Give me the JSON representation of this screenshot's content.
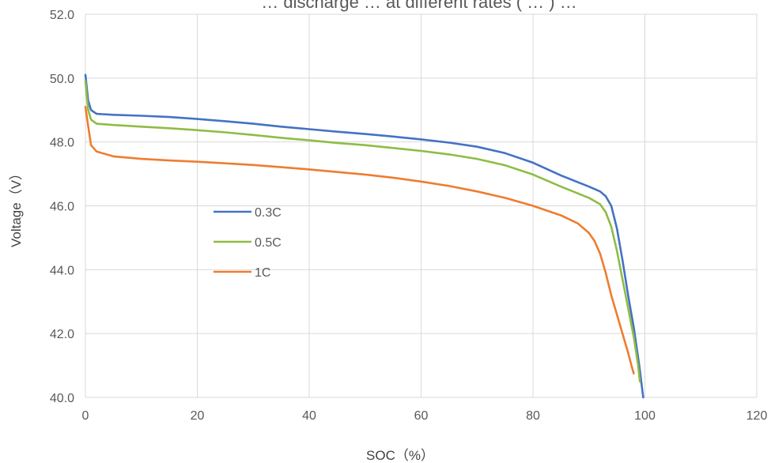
{
  "chart_data": {
    "type": "line",
    "title": "… discharge … at different rates ( … ) …",
    "xlabel": "SOC（%）",
    "ylabel": "Voltage（V）",
    "xlim": [
      0,
      120
    ],
    "ylim": [
      40.0,
      52.0
    ],
    "x_ticks": [
      "0",
      "20",
      "40",
      "60",
      "80",
      "100",
      "120"
    ],
    "y_ticks": [
      "40.0",
      "42.0",
      "44.0",
      "46.0",
      "48.0",
      "50.0",
      "52.0"
    ],
    "grid": true,
    "legend_position": "center-left",
    "series": [
      {
        "name": "0.3C",
        "color": "#4472C4",
        "points": [
          [
            0.0,
            50.1
          ],
          [
            0.5,
            49.3
          ],
          [
            1.0,
            49.0
          ],
          [
            2.0,
            48.88
          ],
          [
            5.0,
            48.85
          ],
          [
            10,
            48.82
          ],
          [
            15,
            48.78
          ],
          [
            20,
            48.72
          ],
          [
            25,
            48.65
          ],
          [
            30,
            48.57
          ],
          [
            35,
            48.48
          ],
          [
            40,
            48.4
          ],
          [
            45,
            48.32
          ],
          [
            50,
            48.25
          ],
          [
            55,
            48.17
          ],
          [
            60,
            48.08
          ],
          [
            65,
            47.98
          ],
          [
            70,
            47.85
          ],
          [
            75,
            47.65
          ],
          [
            80,
            47.35
          ],
          [
            85,
            46.95
          ],
          [
            90,
            46.6
          ],
          [
            92,
            46.45
          ],
          [
            93,
            46.3
          ],
          [
            94,
            46.0
          ],
          [
            95,
            45.3
          ],
          [
            96,
            44.3
          ],
          [
            97,
            43.2
          ],
          [
            98,
            42.2
          ],
          [
            99,
            41.0
          ],
          [
            99.7,
            40.0
          ]
        ]
      },
      {
        "name": "0.5C",
        "color": "#8FBC45",
        "points": [
          [
            0.0,
            49.9
          ],
          [
            0.5,
            49.0
          ],
          [
            1.0,
            48.7
          ],
          [
            2.0,
            48.57
          ],
          [
            5.0,
            48.53
          ],
          [
            10,
            48.48
          ],
          [
            15,
            48.43
          ],
          [
            20,
            48.37
          ],
          [
            25,
            48.3
          ],
          [
            30,
            48.22
          ],
          [
            35,
            48.13
          ],
          [
            40,
            48.05
          ],
          [
            45,
            47.97
          ],
          [
            50,
            47.9
          ],
          [
            55,
            47.81
          ],
          [
            60,
            47.72
          ],
          [
            65,
            47.61
          ],
          [
            70,
            47.47
          ],
          [
            75,
            47.27
          ],
          [
            80,
            46.98
          ],
          [
            85,
            46.6
          ],
          [
            90,
            46.25
          ],
          [
            92,
            46.05
          ],
          [
            93,
            45.8
          ],
          [
            94,
            45.35
          ],
          [
            95,
            44.6
          ],
          [
            96,
            43.7
          ],
          [
            97,
            42.8
          ],
          [
            98,
            41.9
          ],
          [
            98.8,
            41.0
          ],
          [
            99.1,
            40.5
          ]
        ]
      },
      {
        "name": "1C",
        "color": "#ED7D31",
        "points": [
          [
            0.0,
            49.1
          ],
          [
            0.5,
            48.5
          ],
          [
            1.0,
            47.9
          ],
          [
            2.0,
            47.7
          ],
          [
            5.0,
            47.55
          ],
          [
            10,
            47.47
          ],
          [
            15,
            47.42
          ],
          [
            20,
            47.38
          ],
          [
            25,
            47.33
          ],
          [
            30,
            47.28
          ],
          [
            35,
            47.21
          ],
          [
            40,
            47.14
          ],
          [
            45,
            47.06
          ],
          [
            50,
            46.98
          ],
          [
            55,
            46.88
          ],
          [
            60,
            46.76
          ],
          [
            65,
            46.62
          ],
          [
            70,
            46.45
          ],
          [
            75,
            46.25
          ],
          [
            80,
            46.0
          ],
          [
            85,
            45.7
          ],
          [
            88,
            45.45
          ],
          [
            90,
            45.15
          ],
          [
            91,
            44.9
          ],
          [
            92,
            44.5
          ],
          [
            93,
            43.9
          ],
          [
            94,
            43.2
          ],
          [
            95,
            42.6
          ],
          [
            96,
            42.0
          ],
          [
            97,
            41.4
          ],
          [
            97.6,
            41.0
          ],
          [
            98,
            40.75
          ]
        ]
      }
    ]
  }
}
